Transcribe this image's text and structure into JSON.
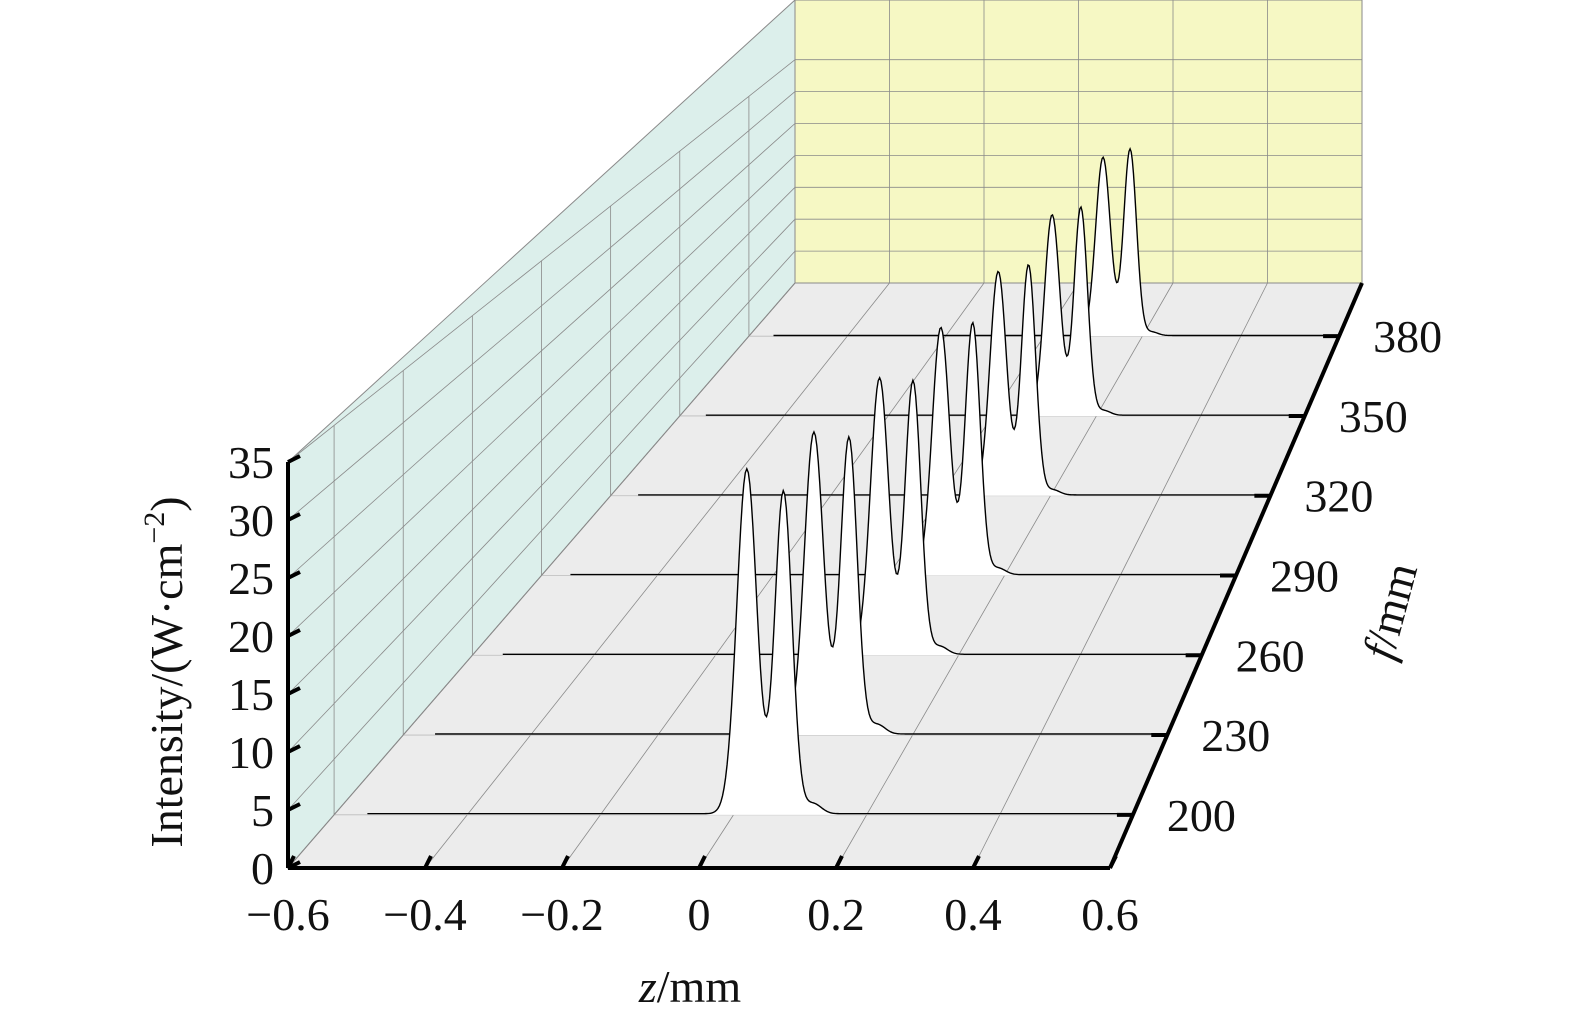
{
  "chart_data": {
    "type": "waterfall-3d-line",
    "title": "",
    "xlabel": {
      "var": "z",
      "unit": "/mm"
    },
    "ylabel": {
      "base": "Intensity/(W·cm",
      "sup": "−2",
      "close": ")"
    },
    "zlabel": {
      "var": "f",
      "unit": "/mm"
    },
    "x_ticks": [
      "−0.6",
      "−0.4",
      "−0.2",
      "0",
      "0.2",
      "0.4",
      "0.6"
    ],
    "x_tick_values": [
      -0.6,
      -0.4,
      -0.2,
      0,
      0.2,
      0.4,
      0.6
    ],
    "y_ticks": [
      "0",
      "5",
      "10",
      "15",
      "20",
      "25",
      "30",
      "35"
    ],
    "y_tick_values": [
      0,
      5,
      10,
      15,
      20,
      25,
      30,
      35
    ],
    "f_ticks": [
      "200",
      "230",
      "260",
      "290",
      "320",
      "350",
      "380"
    ],
    "xlim": [
      -0.6,
      0.6
    ],
    "ylim": [
      0,
      35
    ],
    "grid": true,
    "colors": {
      "back_wall": "#f6f8c4",
      "side_wall": "#dcefeb",
      "floor": "#ececec",
      "grid": "#8a8a8a",
      "curve": "#000000",
      "fill": "#ffffff"
    },
    "series": [
      {
        "f": 200,
        "baseline": 0.1,
        "peaks": [
          {
            "z": 0.02,
            "height": 31,
            "width": 0.015
          },
          {
            "z": 0.075,
            "height": 29,
            "width": 0.013
          }
        ],
        "shoulder": {
          "z": 0.12,
          "height": 0.9,
          "width": 0.012
        }
      },
      {
        "f": 230,
        "baseline": 0.1,
        "peaks": [
          {
            "z": 0.045,
            "height": 29,
            "width": 0.015
          },
          {
            "z": 0.1,
            "height": 28.5,
            "width": 0.013
          }
        ],
        "shoulder": {
          "z": 0.145,
          "height": 0.9,
          "width": 0.012
        }
      },
      {
        "f": 260,
        "baseline": 0.1,
        "peaks": [
          {
            "z": 0.07,
            "height": 28.5,
            "width": 0.015
          },
          {
            "z": 0.125,
            "height": 28.2,
            "width": 0.013
          }
        ],
        "shoulder": {
          "z": 0.17,
          "height": 0.8,
          "width": 0.012
        }
      },
      {
        "f": 290,
        "baseline": 0.1,
        "peaks": [
          {
            "z": 0.09,
            "height": 27.5,
            "width": 0.015
          },
          {
            "z": 0.145,
            "height": 28.0,
            "width": 0.013
          }
        ],
        "shoulder": {
          "z": 0.19,
          "height": 0.7,
          "width": 0.012
        }
      },
      {
        "f": 320,
        "baseline": 0.1,
        "peaks": [
          {
            "z": 0.105,
            "height": 27,
            "width": 0.015
          },
          {
            "z": 0.16,
            "height": 27.8,
            "width": 0.013
          }
        ],
        "shoulder": {
          "z": 0.205,
          "height": 0.6,
          "width": 0.012
        }
      },
      {
        "f": 350,
        "baseline": 0.1,
        "peaks": [
          {
            "z": 0.115,
            "height": 26.5,
            "width": 0.015
          },
          {
            "z": 0.17,
            "height": 27.5,
            "width": 0.013
          }
        ],
        "shoulder": {
          "z": 0.215,
          "height": 0.6,
          "width": 0.012
        }
      },
      {
        "f": 380,
        "baseline": 0.1,
        "peaks": [
          {
            "z": 0.12,
            "height": 26,
            "width": 0.015
          },
          {
            "z": 0.175,
            "height": 27.2,
            "width": 0.013
          }
        ],
        "shoulder": {
          "z": 0.22,
          "height": 0.5,
          "width": 0.012
        }
      }
    ]
  }
}
